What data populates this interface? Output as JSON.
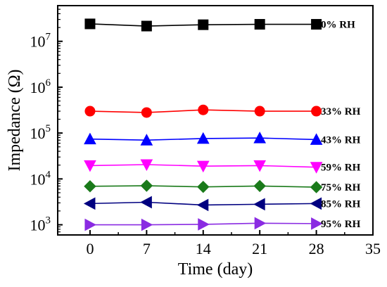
{
  "chart_data": {
    "type": "line",
    "title": "",
    "xlabel": "Time (day)",
    "ylabel": "Impedance (Ω)",
    "x_scale": "linear",
    "y_scale": "log",
    "xlim": [
      -4,
      35
    ],
    "ylim": [
      600,
      60000000
    ],
    "x_ticks": [
      0,
      7,
      14,
      21,
      28,
      35
    ],
    "y_ticks": [
      {
        "value": 1000,
        "base": "10",
        "exp": "3"
      },
      {
        "value": 10000,
        "base": "10",
        "exp": "4"
      },
      {
        "value": 100000,
        "base": "10",
        "exp": "5"
      },
      {
        "value": 1000000,
        "base": "10",
        "exp": "6"
      },
      {
        "value": 10000000,
        "base": "10",
        "exp": "7"
      }
    ],
    "grid": false,
    "x": [
      0,
      7,
      14,
      21,
      28
    ],
    "series": [
      {
        "name": "0% RH",
        "color": "#000000",
        "marker": "square",
        "values": [
          24000000,
          21500000,
          23000000,
          23500000,
          23500000
        ]
      },
      {
        "name": "33% RH",
        "color": "#ff0000",
        "marker": "circle",
        "values": [
          300000,
          280000,
          320000,
          300000,
          300000
        ]
      },
      {
        "name": "43% RH",
        "color": "#0000ff",
        "marker": "triangle-up",
        "values": [
          74000,
          70000,
          76000,
          78000,
          72000
        ]
      },
      {
        "name": "59% RH",
        "color": "#ff00ff",
        "marker": "triangle-down",
        "values": [
          19500,
          20500,
          19000,
          19500,
          18000
        ]
      },
      {
        "name": "75% RH",
        "color": "#1a7a1a",
        "marker": "diamond",
        "values": [
          6900,
          7100,
          6700,
          7000,
          6600
        ]
      },
      {
        "name": "85% RH",
        "color": "#000080",
        "marker": "triangle-left",
        "values": [
          2900,
          3100,
          2700,
          2800,
          2900
        ]
      },
      {
        "name": "95% RH",
        "color": "#8a2be2",
        "marker": "triangle-right",
        "values": [
          1000,
          1000,
          1020,
          1080,
          1060
        ]
      }
    ]
  }
}
